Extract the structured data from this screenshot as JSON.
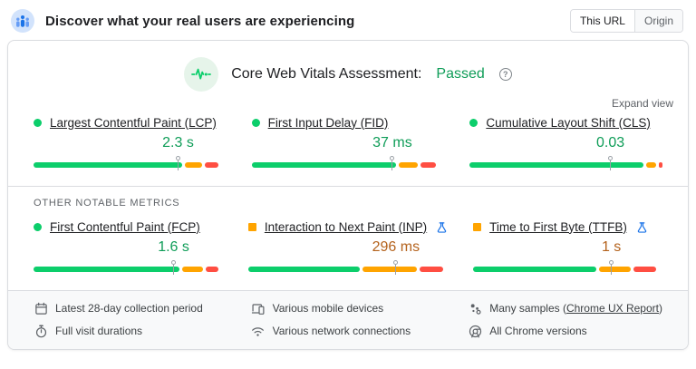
{
  "colors": {
    "good": "#0cce6b",
    "needs_improvement": "#ffa400",
    "poor": "#ff4e42",
    "good_text": "#0f9d58",
    "needs_improvement_text": "#b4621c",
    "experimental_blue": "#1a73e8"
  },
  "header": {
    "title": "Discover what your real users are experiencing",
    "toggle": {
      "this_url": "This URL",
      "origin": "Origin"
    }
  },
  "assessment": {
    "label": "Core Web Vitals Assessment:",
    "status": "Passed",
    "help_glyph": "?"
  },
  "expand_view_label": "Expand view",
  "core_metrics": [
    {
      "id": "lcp",
      "name": "Largest Contentful Paint (LCP)",
      "value": "2.3 s",
      "status": "good",
      "experimental": false,
      "percentile_marker": 75,
      "distribution": {
        "good": 77,
        "needs_improvement": 9,
        "poor": 7
      }
    },
    {
      "id": "fid",
      "name": "First Input Delay (FID)",
      "value": "37 ms",
      "status": "good",
      "experimental": false,
      "percentile_marker": 73,
      "distribution": {
        "good": 75,
        "needs_improvement": 10,
        "poor": 8
      }
    },
    {
      "id": "cls",
      "name": "Cumulative Layout Shift (CLS)",
      "value": "0.03",
      "status": "good",
      "experimental": false,
      "percentile_marker": 73,
      "distribution": {
        "good": 91,
        "needs_improvement": 5,
        "poor": 2
      }
    }
  ],
  "other_metrics_label": "OTHER NOTABLE METRICS",
  "other_metrics": [
    {
      "id": "fcp",
      "name": "First Contentful Paint (FCP)",
      "value": "1.6 s",
      "status": "good",
      "experimental": false,
      "percentile_marker": 74,
      "distribution": {
        "good": 77,
        "needs_improvement": 11,
        "poor": 7
      }
    },
    {
      "id": "inp",
      "name": "Interaction to Next Paint (INP)",
      "value": "296 ms",
      "status": "needs-improvement",
      "experimental": true,
      "percentile_marker": 74,
      "distribution": {
        "good": 56,
        "needs_improvement": 27,
        "poor": 12
      }
    },
    {
      "id": "ttfb",
      "name": "Time to First Byte (TTFB)",
      "value": "1 s",
      "status": "needs-improvement",
      "experimental": true,
      "percentile_marker": 73,
      "distribution": {
        "good": 65,
        "needs_improvement": 17,
        "poor": 12
      }
    }
  ],
  "footer": {
    "columns": [
      {
        "items": [
          {
            "icon": "calendar-icon",
            "text": "Latest 28-day collection period"
          },
          {
            "icon": "stopwatch-icon",
            "text": "Full visit durations"
          }
        ]
      },
      {
        "items": [
          {
            "icon": "devices-icon",
            "text": "Various mobile devices"
          },
          {
            "icon": "wifi-icon",
            "text": "Various network connections"
          }
        ]
      },
      {
        "items": [
          {
            "icon": "samples-icon",
            "text_before": "Many samples (",
            "link": "Chrome UX Report",
            "text_after": ")"
          },
          {
            "icon": "chrome-icon",
            "text": "All Chrome versions"
          }
        ]
      }
    ]
  }
}
